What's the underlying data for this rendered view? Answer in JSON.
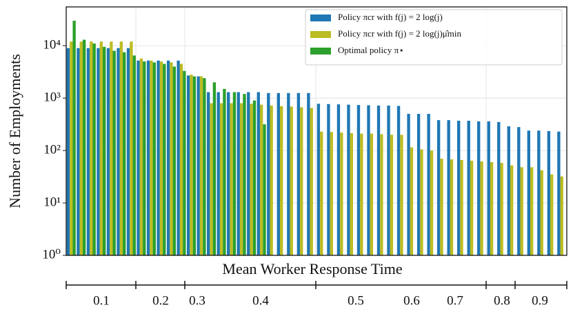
{
  "chart_data": {
    "type": "bar",
    "y_label": "Number of Employments",
    "x_label": "Mean Worker Response Time",
    "categories": [
      null,
      null,
      null,
      null,
      null,
      null,
      null,
      null,
      null,
      null,
      null,
      null,
      null,
      null,
      null,
      null,
      null,
      null,
      null,
      null,
      null,
      null,
      null,
      null,
      null,
      null,
      null,
      null,
      null,
      null,
      null,
      null,
      null,
      null,
      null,
      null,
      null,
      null,
      null,
      null,
      null,
      null,
      null,
      null,
      null,
      null,
      null,
      null,
      null,
      null
    ],
    "x2_labels": [
      0.1,
      0.2,
      0.3,
      0.4,
      0.5,
      0.6,
      0.7,
      0.8,
      0.9
    ],
    "series": [
      {
        "name": "Policy πcr with f(j) = 2 log(j)",
        "color": "#1f77b4",
        "values": [
          9000,
          9000,
          9000,
          9000,
          9000,
          9000,
          9000,
          5200,
          5200,
          5200,
          5200,
          5200,
          2700,
          2600,
          1300,
          1300,
          1300,
          1300,
          1300,
          1300,
          1250,
          1250,
          1250,
          1250,
          1250,
          780,
          770,
          760,
          750,
          740,
          730,
          720,
          720,
          710,
          500,
          500,
          500,
          380,
          380,
          370,
          370,
          360,
          360,
          350,
          290,
          280,
          240,
          240,
          235,
          230
        ]
      },
      {
        "name": "Policy πcr with f(j) = 2 log(j)μ̂min",
        "color": "#bcbd22",
        "values": [
          12000,
          12000,
          12000,
          12000,
          12000,
          12000,
          12000,
          5700,
          5200,
          5000,
          4800,
          4500,
          2800,
          2600,
          800,
          800,
          800,
          800,
          780,
          750,
          720,
          700,
          690,
          670,
          650,
          230,
          225,
          220,
          215,
          210,
          210,
          205,
          200,
          200,
          115,
          105,
          100,
          70,
          68,
          66,
          64,
          62,
          60,
          58,
          52,
          48,
          48,
          42,
          35,
          32
        ]
      },
      {
        "name": "Optimal policy π⋆",
        "color": "#2ca02c",
        "values": [
          30000,
          13000,
          11000,
          9500,
          8000,
          7500,
          6500,
          5000,
          4800,
          4500,
          4000,
          3300,
          2600,
          2400,
          2000,
          1500,
          1300,
          1200,
          900,
          316,
          null,
          null,
          null,
          null,
          null,
          null,
          null,
          null,
          null,
          null,
          null,
          null,
          null,
          null,
          null,
          null,
          null,
          null,
          null,
          null,
          null,
          null,
          null,
          null,
          null,
          null,
          null,
          null,
          null,
          null
        ]
      }
    ],
    "log_y": true,
    "ylim": [
      1,
      55000
    ],
    "yticks": [
      {
        "value": 1,
        "label": "10⁰"
      },
      {
        "value": 10,
        "label": "10¹"
      },
      {
        "value": 100,
        "label": "10²"
      },
      {
        "value": 1000,
        "label": "10³"
      },
      {
        "value": 10000,
        "label": "10⁴"
      }
    ],
    "grid": true,
    "legend": "upper right"
  }
}
